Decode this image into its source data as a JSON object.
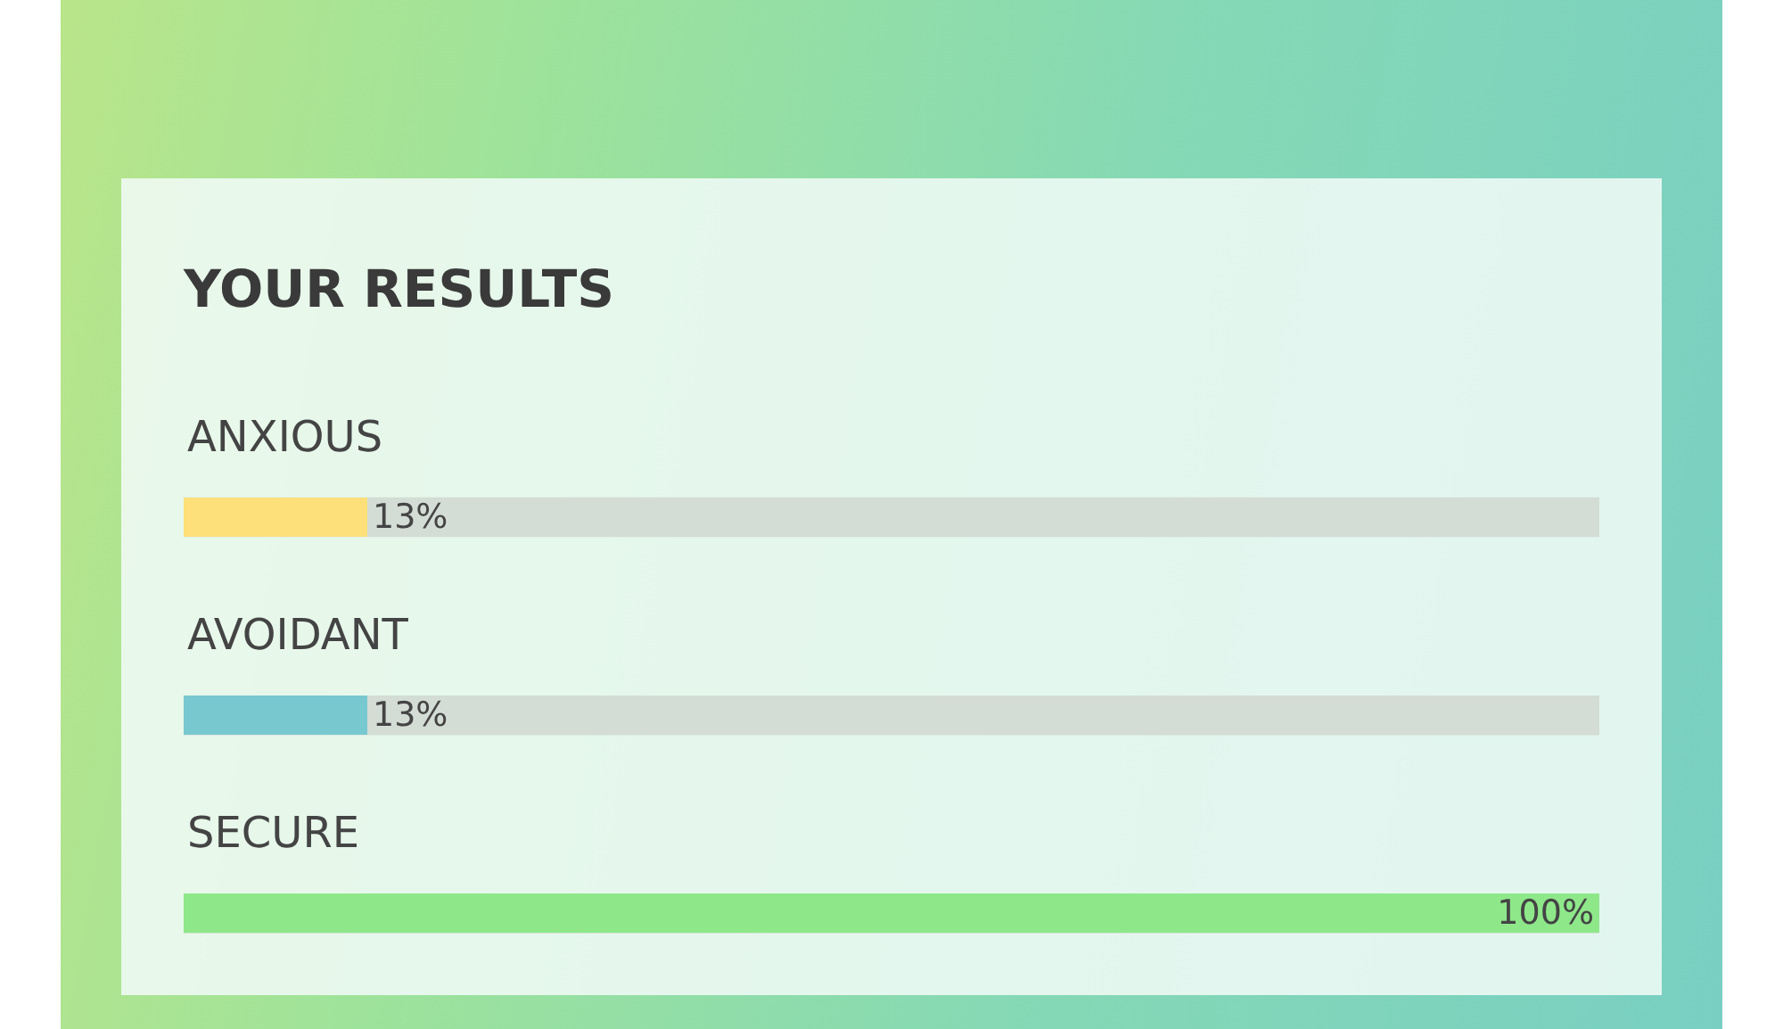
{
  "chart_data": {
    "type": "bar",
    "orientation": "horizontal",
    "title": "YOUR RESULTS",
    "categories": [
      "ANXIOUS",
      "AVOIDANT",
      "SECURE"
    ],
    "values": [
      13,
      13,
      100
    ],
    "colors": [
      "#fde07a",
      "#78c8d0",
      "#8ee88a"
    ],
    "value_labels": [
      "13%",
      "13%",
      "100%"
    ],
    "xlim": [
      0,
      100
    ],
    "grid": false,
    "tick_labels": false
  }
}
